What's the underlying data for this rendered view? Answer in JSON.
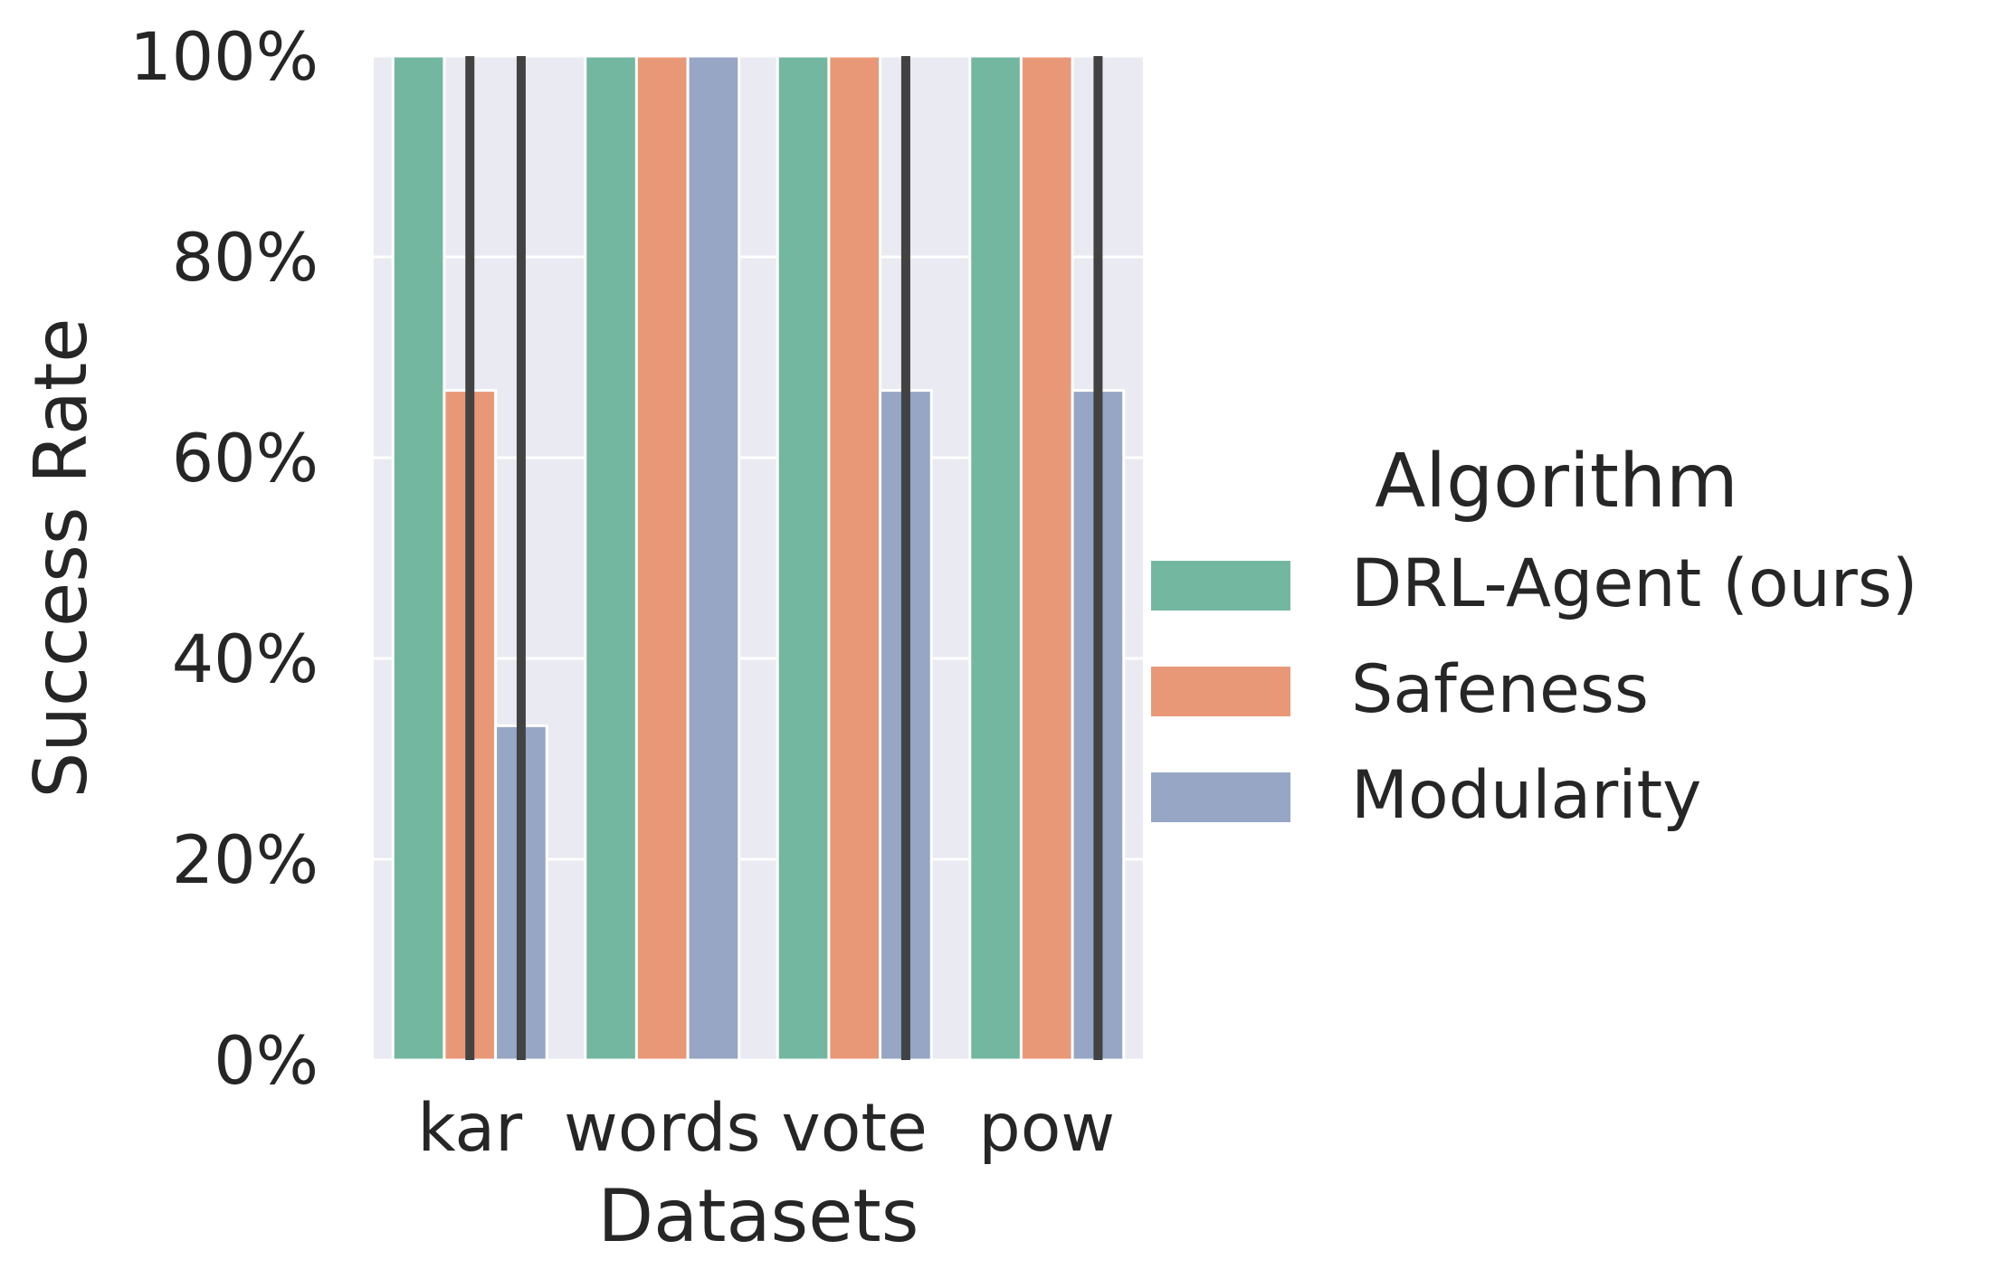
{
  "chart_data": {
    "type": "bar",
    "title": "",
    "xlabel": "Datasets",
    "ylabel": "Success Rate",
    "categories": [
      "kar",
      "words",
      "vote",
      "pow"
    ],
    "ylim": [
      0,
      1
    ],
    "yticks": [
      0,
      0.2,
      0.4,
      0.6,
      0.8,
      1.0
    ],
    "ytick_labels": [
      "0%",
      "20%",
      "40%",
      "60%",
      "80%",
      "100%"
    ],
    "grid": true,
    "legend": {
      "title": "Algorithm",
      "placement": "center-right outside"
    },
    "series": [
      {
        "name": "DRL-Agent (ours)",
        "color": "#74B7A0",
        "values": [
          1.0,
          1.0,
          1.0,
          1.0
        ],
        "error": [
          null,
          null,
          null,
          null
        ]
      },
      {
        "name": "Safeness",
        "color": "#E99877",
        "values": [
          0.667,
          1.0,
          1.0,
          1.0
        ],
        "error": [
          [
            0,
            1
          ],
          null,
          null,
          null
        ]
      },
      {
        "name": "Modularity",
        "color": "#96A6C4",
        "values": [
          0.333,
          1.0,
          0.667,
          0.667
        ],
        "error": [
          [
            0,
            1
          ],
          null,
          [
            0,
            1
          ],
          [
            0,
            1
          ]
        ]
      }
    ],
    "background_color": "#EAEAF2",
    "grid_color": "#FFFFFF",
    "errorbar_color": "#424242"
  }
}
